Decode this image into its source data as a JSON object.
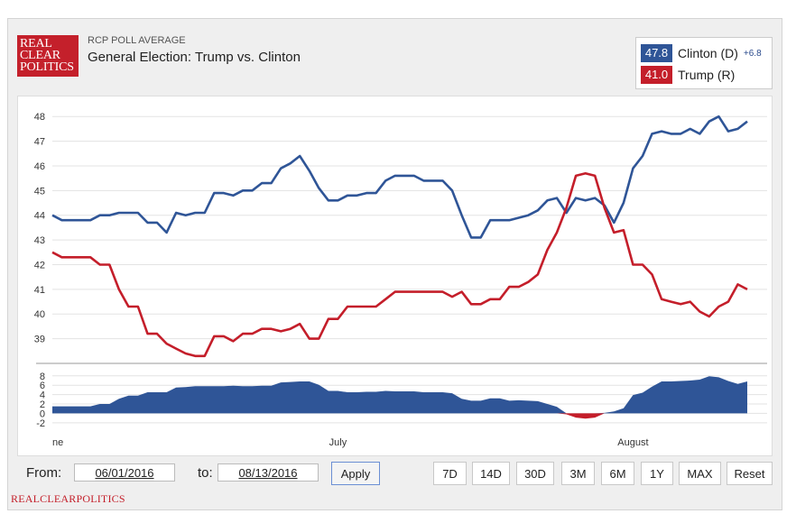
{
  "header": {
    "logo_lines": [
      "REAL",
      "CLEAR",
      "POLITICS"
    ],
    "kicker": "RCP POLL AVERAGE",
    "title": "General Election: Trump vs. Clinton"
  },
  "legend": {
    "clinton": {
      "value": "47.8",
      "name": "Clinton (D)",
      "spread": "+6.8",
      "color": "#2f5597"
    },
    "trump": {
      "value": "41.0",
      "name": "Trump (R)",
      "color": "#c41e2a"
    }
  },
  "chart_data": {
    "type": "line",
    "title": "General Election: Trump vs. Clinton",
    "x_tick_labels": [
      "ne",
      "July",
      "August"
    ],
    "x_start": "2016-06-01",
    "x_end": "2016-08-13",
    "main_panel": {
      "ylim": [
        38,
        48.3
      ],
      "y_ticks": [
        39,
        40,
        41,
        42,
        43,
        44,
        45,
        46,
        47,
        48
      ],
      "grid": true,
      "series": [
        {
          "name": "Clinton (D)",
          "color": "#2f5597",
          "values": [
            44.0,
            43.8,
            43.8,
            43.8,
            43.8,
            44.0,
            44.0,
            44.1,
            44.1,
            44.1,
            43.7,
            43.7,
            43.3,
            44.1,
            44.0,
            44.1,
            44.1,
            44.9,
            44.9,
            44.8,
            45.0,
            45.0,
            45.3,
            45.3,
            45.9,
            46.1,
            46.4,
            45.8,
            45.1,
            44.6,
            44.6,
            44.8,
            44.8,
            44.9,
            44.9,
            45.4,
            45.6,
            45.6,
            45.6,
            45.4,
            45.4,
            45.4,
            45.0,
            44.0,
            43.1,
            43.1,
            43.8,
            43.8,
            43.8,
            43.9,
            44.0,
            44.2,
            44.6,
            44.7,
            44.1,
            44.7,
            44.6,
            44.7,
            44.4,
            43.7,
            44.5,
            45.9,
            46.4,
            47.3,
            47.4,
            47.3,
            47.3,
            47.5,
            47.3,
            47.8,
            48.0,
            47.4,
            47.5,
            47.8
          ]
        },
        {
          "name": "Trump (R)",
          "color": "#c41e2a",
          "values": [
            42.5,
            42.3,
            42.3,
            42.3,
            42.3,
            42.0,
            42.0,
            41.0,
            40.3,
            40.3,
            39.2,
            39.2,
            38.8,
            38.6,
            38.4,
            38.3,
            38.3,
            39.1,
            39.1,
            38.9,
            39.2,
            39.2,
            39.4,
            39.4,
            39.3,
            39.4,
            39.6,
            39.0,
            39.0,
            39.8,
            39.8,
            40.3,
            40.3,
            40.3,
            40.3,
            40.6,
            40.9,
            40.9,
            40.9,
            40.9,
            40.9,
            40.9,
            40.7,
            40.9,
            40.4,
            40.4,
            40.6,
            40.6,
            41.1,
            41.1,
            41.3,
            41.6,
            42.6,
            43.3,
            44.3,
            45.6,
            45.7,
            45.6,
            44.3,
            43.3,
            43.4,
            42.0,
            42.0,
            41.6,
            40.6,
            40.5,
            40.4,
            40.5,
            40.1,
            39.9,
            40.3,
            40.5,
            41.2,
            41.0
          ]
        }
      ]
    },
    "spread_panel": {
      "type": "area",
      "ylim": [
        -2.8,
        9.5
      ],
      "y_ticks": [
        -2,
        0,
        2,
        4,
        6,
        8
      ],
      "color": "#2f5597",
      "negative_color": "#c41e2a"
    }
  },
  "controls": {
    "from_label": "From:",
    "from_value": "06/01/2016",
    "to_label": "to:",
    "to_value": "08/13/2016",
    "apply_label": "Apply",
    "ranges": [
      "7D",
      "14D",
      "30D",
      "3M",
      "6M",
      "1Y",
      "MAX",
      "Reset"
    ]
  },
  "footer": {
    "brand": "REALCLEARPOLITICS"
  }
}
